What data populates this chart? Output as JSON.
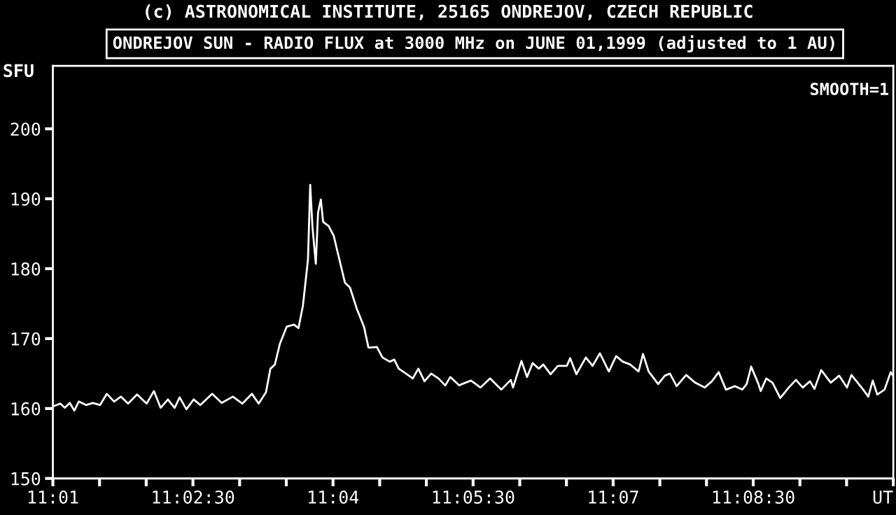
{
  "chart_data": {
    "type": "line",
    "title": "(c) ASTRONOMICAL INSTITUTE, 25165 ONDREJOV, CZECH REPUBLIC",
    "subtitle": "ONDREJOV SUN - RADIO FLUX at 3000 MHz on JUNE 01,1999 (adjusted to 1 AU)",
    "ylabel": "SFU",
    "annotations": [
      "SMOOTH=1"
    ],
    "series": [
      {
        "color": "#ffffff",
        "x": [
          11.0167,
          11.018,
          11.0188,
          11.0197,
          11.0205,
          11.0213,
          11.0226,
          11.0238,
          11.0251,
          11.0263,
          11.0276,
          11.0288,
          11.0301,
          11.0317,
          11.0334,
          11.0347,
          11.0359,
          11.0372,
          11.0384,
          11.0393,
          11.0405,
          11.0418,
          11.043,
          11.0451,
          11.0468,
          11.0488,
          11.0505,
          11.0522,
          11.0534,
          11.0547,
          11.0555,
          11.0563,
          11.0572,
          11.0584,
          11.0597,
          11.0605,
          11.0613,
          11.0622,
          11.0626,
          11.063,
          11.0636,
          11.064,
          11.0645,
          11.0649,
          11.0659,
          11.0668,
          11.0676,
          11.0688,
          11.0697,
          11.0709,
          11.0722,
          11.073,
          11.0745,
          11.0755,
          11.0768,
          11.0776,
          11.0784,
          11.0797,
          11.0809,
          11.0819,
          11.083,
          11.0842,
          11.0855,
          11.0867,
          11.0876,
          11.0892,
          11.0897,
          11.0913,
          11.093,
          11.0947,
          11.0967,
          11.0984,
          11.0988,
          11.1003,
          11.1013,
          11.1023,
          11.1034,
          11.1042,
          11.1055,
          11.1068,
          11.1084,
          11.109,
          11.1101,
          11.1118,
          11.113,
          11.1143,
          11.1159,
          11.1172,
          11.1184,
          11.1197,
          11.1212,
          11.122,
          11.123,
          11.1247,
          11.1259,
          11.1268,
          11.128,
          11.1297,
          11.1313,
          11.133,
          11.1343,
          11.1355,
          11.1368,
          11.1384,
          11.1397,
          11.1405,
          11.1413,
          11.1426,
          11.143,
          11.144,
          11.1451,
          11.1465,
          11.148,
          11.1493,
          11.1505,
          11.1518,
          11.1526,
          11.1538,
          11.1555,
          11.157,
          11.1584,
          11.1592,
          11.1613,
          11.1622,
          11.163,
          11.1638,
          11.1651,
          11.1662,
          11.1666
        ],
        "values": [
          160.3,
          160.7,
          160.1,
          160.8,
          159.7,
          161,
          160.5,
          160.8,
          160.5,
          162.1,
          161,
          161.7,
          160.7,
          162,
          160.7,
          162.5,
          160.1,
          161.3,
          160.1,
          161.6,
          159.9,
          161.3,
          160.5,
          162.1,
          160.8,
          161.7,
          160.7,
          162.1,
          160.7,
          162.3,
          165.7,
          166.3,
          169.3,
          171.7,
          172,
          171.5,
          174.7,
          181.3,
          192,
          186,
          180.7,
          188,
          189.9,
          186.7,
          186.1,
          184.7,
          182,
          178,
          177.3,
          174.3,
          171.7,
          168.7,
          168.8,
          167.3,
          166.7,
          167,
          165.7,
          165,
          164.3,
          165.7,
          163.9,
          165,
          164.3,
          163.3,
          164.5,
          163.3,
          163.5,
          164,
          163,
          164.3,
          162.7,
          164.1,
          163,
          166.8,
          164.5,
          166.5,
          165.7,
          166.3,
          164.9,
          166.1,
          166.1,
          167.2,
          164.9,
          167.3,
          166.1,
          167.9,
          165.3,
          167.5,
          166.7,
          166.3,
          165.3,
          167.8,
          165.3,
          163.5,
          164.7,
          165,
          163.2,
          164.8,
          163.7,
          163,
          163.9,
          165.2,
          162.7,
          163.2,
          162.7,
          163.5,
          166,
          163.5,
          162.5,
          164.3,
          163.7,
          161.5,
          163,
          164.1,
          163,
          163.9,
          162.8,
          165.5,
          163.7,
          164.7,
          163,
          164.8,
          162.7,
          161.7,
          164,
          162,
          162.7,
          165.2,
          164.7
        ]
      }
    ],
    "xlim": [
      11.01667,
      11.16667
    ],
    "xticks": [
      {
        "value": 11.01667,
        "label": "11:01"
      },
      {
        "value": 11.025,
        "label": null
      },
      {
        "value": 11.03333,
        "label": null
      },
      {
        "value": 11.04167,
        "label": "11:02:30"
      },
      {
        "value": 11.05,
        "label": null
      },
      {
        "value": 11.05833,
        "label": null
      },
      {
        "value": 11.06667,
        "label": "11:04"
      },
      {
        "value": 11.075,
        "label": null
      },
      {
        "value": 11.08333,
        "label": null
      },
      {
        "value": 11.09167,
        "label": "11:05:30"
      },
      {
        "value": 11.1,
        "label": null
      },
      {
        "value": 11.10833,
        "label": null
      },
      {
        "value": 11.11667,
        "label": "11:07"
      },
      {
        "value": 11.125,
        "label": null
      },
      {
        "value": 11.13333,
        "label": null
      },
      {
        "value": 11.14167,
        "label": "11:08:30"
      },
      {
        "value": 11.15,
        "label": null
      },
      {
        "value": 11.15833,
        "label": null
      },
      {
        "value": 11.16667,
        "label": "UT"
      }
    ],
    "ylim": [
      150,
      209
    ],
    "yticks": [
      150,
      160,
      170,
      180,
      190,
      200
    ],
    "grid": false,
    "legend": false,
    "marker": "none",
    "line_style": "solid"
  }
}
